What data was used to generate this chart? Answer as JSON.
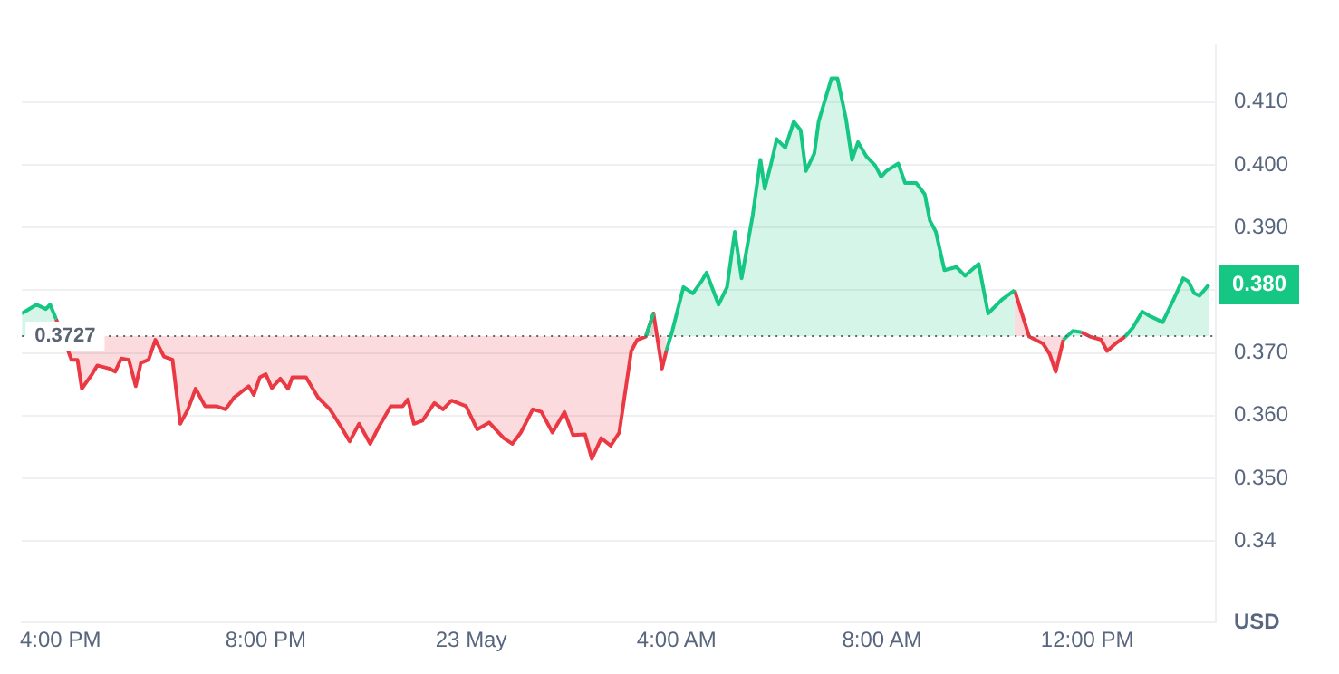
{
  "chart_data": {
    "type": "area",
    "ylabel": "USD",
    "annotations": [
      "0.380"
    ],
    "x": [
      "--05-22T15:15",
      "--05-22T15:32",
      "--05-22T15:43",
      "--05-22T15:48",
      "--05-22T15:55",
      "--05-22T16:13",
      "--05-22T16:20",
      "--05-22T16:25",
      "--05-22T16:37",
      "--05-22T16:43",
      "--05-22T16:57",
      "--05-22T17:04",
      "--05-22T17:11",
      "--05-22T17:20",
      "--05-22T17:28",
      "--05-22T17:34",
      "--05-22T17:43",
      "--05-22T17:51",
      "--05-22T18:01",
      "--05-22T18:11",
      "--05-22T18:20",
      "--05-22T18:29",
      "--05-22T18:38",
      "--05-22T18:49",
      "--05-22T19:02",
      "--05-22T19:13",
      "--05-22T19:23",
      "--05-22T19:29",
      "--05-22T19:40",
      "--05-22T19:46",
      "--05-22T19:53",
      "--05-22T20:00",
      "--05-22T20:07",
      "--05-22T20:17",
      "--05-22T20:26",
      "--05-22T20:31",
      "--05-22T20:47",
      "--05-22T21:01",
      "--05-22T21:15",
      "--05-22T21:28",
      "--05-22T21:38",
      "--05-22T21:49",
      "--05-22T22:02",
      "--05-22T22:12",
      "--05-22T22:26",
      "--05-22T22:40",
      "--05-22T22:46",
      "--05-22T22:53",
      "--05-22T23:03",
      "--05-22T23:17",
      "--05-22T23:27",
      "--05-22T23:37",
      "--05-22T23:54",
      "--05-23T00:07",
      "--05-23T00:21",
      "--05-23T00:38",
      "--05-23T00:48",
      "--05-23T00:58",
      "--05-23T01:12",
      "--05-23T01:22",
      "--05-23T01:35",
      "--05-23T01:49",
      "--05-23T01:59",
      "--05-23T02:13",
      "--05-23T02:21",
      "--05-23T02:32",
      "--05-23T02:43",
      "--05-23T02:53",
      "--05-23T03:07",
      "--05-23T03:14",
      "--05-23T03:24",
      "--05-23T03:33",
      "--05-23T03:43",
      "--05-23T03:48",
      "--05-23T03:55",
      "--05-23T04:08",
      "--05-23T04:19",
      "--05-23T04:29",
      "--05-23T04:35",
      "--05-23T04:49",
      "--05-23T04:59",
      "--05-23T05:08",
      "--05-23T05:16",
      "--05-23T05:29",
      "--05-23T05:38",
      "--05-23T05:43",
      "--05-23T05:50",
      "--05-23T05:57",
      "--05-23T06:07",
      "--05-23T06:17",
      "--05-23T06:25",
      "--05-23T06:31",
      "--05-23T06:41",
      "--05-23T06:46",
      "--05-23T07:01",
      "--05-23T07:08",
      "--05-23T07:18",
      "--05-23T07:25",
      "--05-23T07:32",
      "--05-23T07:42",
      "--05-23T07:52",
      "--05-23T07:59",
      "--05-23T08:05",
      "--05-23T08:19",
      "--05-23T08:27",
      "--05-23T08:40",
      "--05-23T08:50",
      "--05-23T08:56",
      "--05-23T09:03",
      "--05-23T09:13",
      "--05-23T09:27",
      "--05-23T09:37",
      "--05-23T09:53",
      "--05-23T10:04",
      "--05-23T10:21",
      "--05-23T10:35",
      "--05-23T10:52",
      "--05-23T11:08",
      "--05-23T11:16",
      "--05-23T11:23",
      "--05-23T11:32",
      "--05-23T11:43",
      "--05-23T11:53",
      "--05-23T12:03",
      "--05-23T12:16",
      "--05-23T12:23",
      "--05-23T12:33",
      "--05-23T12:44",
      "--05-23T12:53",
      "--05-23T13:04",
      "--05-23T13:14",
      "--05-23T13:28",
      "--05-23T13:41",
      "--05-23T13:52",
      "--05-23T13:58",
      "--05-23T14:05",
      "--05-23T14:11",
      "--05-23T14:22"
    ],
    "series": [
      {
        "color": "#16c784",
        "values": [
          0.3763,
          0.3777,
          0.377,
          0.3777,
          0.3754,
          null,
          null,
          null,
          null,
          null,
          null,
          null,
          null,
          null,
          null,
          null,
          null,
          null,
          null,
          null,
          null,
          null,
          null,
          null,
          null,
          null,
          null,
          null,
          null,
          null,
          null,
          null,
          null,
          null,
          null,
          null,
          null,
          null,
          null,
          null,
          null,
          null,
          null,
          null,
          null,
          null,
          null,
          null,
          null,
          null,
          null,
          null,
          null,
          null,
          null,
          null,
          null,
          null,
          null,
          null,
          null,
          null,
          null,
          null,
          null,
          null,
          null,
          null,
          null,
          null,
          0.3726,
          0.3763,
          null,
          0.3703,
          0.3735,
          0.3805,
          0.3795,
          0.3814,
          0.3828,
          0.3777,
          0.3805,
          0.3893,
          0.3819,
          0.392,
          0.4008,
          0.3962,
          0.3999,
          0.4041,
          0.4027,
          0.4069,
          0.4055,
          0.399,
          0.4018,
          0.4069,
          0.4138,
          0.4138,
          0.4073,
          0.4008,
          0.4036,
          0.4013,
          0.3999,
          0.3981,
          0.399,
          0.4002,
          0.3971,
          0.3971,
          0.3953,
          0.3911,
          0.3893,
          0.3832,
          0.3837,
          0.3823,
          0.3842,
          0.3763,
          0.3786,
          0.38,
          null,
          null,
          null,
          null,
          0.3721,
          0.3735,
          0.3733,
          null,
          null,
          null,
          null,
          0.3726,
          0.374,
          0.3766,
          0.3758,
          0.3749,
          0.3786,
          0.3819,
          0.3814,
          0.3795,
          0.3791,
          0.3809
        ]
      },
      {
        "color": "#ea3943",
        "values": [
          null,
          null,
          null,
          null,
          0.3754,
          0.3689,
          0.3689,
          0.3643,
          0.3666,
          0.368,
          0.3675,
          0.367,
          0.3691,
          0.3689,
          0.3647,
          0.3684,
          0.3689,
          0.3721,
          0.3694,
          0.3689,
          0.3587,
          0.361,
          0.3643,
          0.3615,
          0.3615,
          0.361,
          0.3629,
          0.3635,
          0.3647,
          0.3633,
          0.3661,
          0.3666,
          0.3644,
          0.3659,
          0.3643,
          0.3661,
          0.3661,
          0.3629,
          0.361,
          0.3582,
          0.3559,
          0.3587,
          0.3555,
          0.3582,
          0.3615,
          0.3615,
          0.3626,
          0.3587,
          0.3592,
          0.362,
          0.361,
          0.3624,
          0.3615,
          0.3578,
          0.3589,
          0.3564,
          0.3555,
          0.3573,
          0.361,
          0.3606,
          0.3573,
          0.3606,
          0.3569,
          0.357,
          0.3531,
          0.3564,
          0.3552,
          0.3573,
          0.3703,
          0.3721,
          0.3726,
          0.3763,
          0.3675,
          0.3703,
          null,
          null,
          null,
          null,
          null,
          null,
          null,
          null,
          null,
          null,
          null,
          null,
          null,
          null,
          null,
          null,
          null,
          null,
          null,
          null,
          null,
          null,
          null,
          null,
          null,
          null,
          null,
          null,
          null,
          null,
          null,
          null,
          null,
          null,
          null,
          null,
          null,
          null,
          null,
          null,
          null,
          0.38,
          0.3726,
          0.3715,
          0.3698,
          0.367,
          0.3721,
          null,
          0.3733,
          0.3726,
          0.3721,
          0.3703,
          0.3715,
          0.3726,
          null,
          null,
          null,
          null,
          null,
          null,
          null,
          null,
          null,
          null
        ]
      }
    ],
    "ref_lines": [
      {
        "axis": "y",
        "value": 0.3727,
        "label": "0.3727",
        "color": "#5a6472",
        "line_style": "dotted"
      }
    ],
    "xlim": [
      "--05-22T15:15",
      "--05-23T14:30"
    ],
    "xticks": [
      {
        "value": "--05-22T16:00",
        "label": "4:00 PM"
      },
      {
        "value": "--05-22T20:00",
        "label": "8:00 PM"
      },
      {
        "value": "--05-23T00:00",
        "label": "23 May"
      },
      {
        "value": "--05-23T04:00",
        "label": "4:00 AM"
      },
      {
        "value": "--05-23T08:00",
        "label": "8:00 AM"
      },
      {
        "value": "--05-23T12:00",
        "label": "12:00 PM"
      }
    ],
    "ylim": [
      0.327,
      0.419
    ],
    "yticks": [
      {
        "value": 0.34,
        "label": "0.34"
      },
      {
        "value": 0.35,
        "label": "0.350"
      },
      {
        "value": 0.36,
        "label": "0.360"
      },
      {
        "value": 0.37,
        "label": "0.370"
      },
      {
        "value": 0.38,
        "label": null
      },
      {
        "value": 0.39,
        "label": "0.390"
      },
      {
        "value": 0.4,
        "label": "0.400"
      },
      {
        "value": 0.41,
        "label": "0.410"
      }
    ],
    "grid": "y",
    "legend": false,
    "marker": "none",
    "line_style": "solid"
  }
}
